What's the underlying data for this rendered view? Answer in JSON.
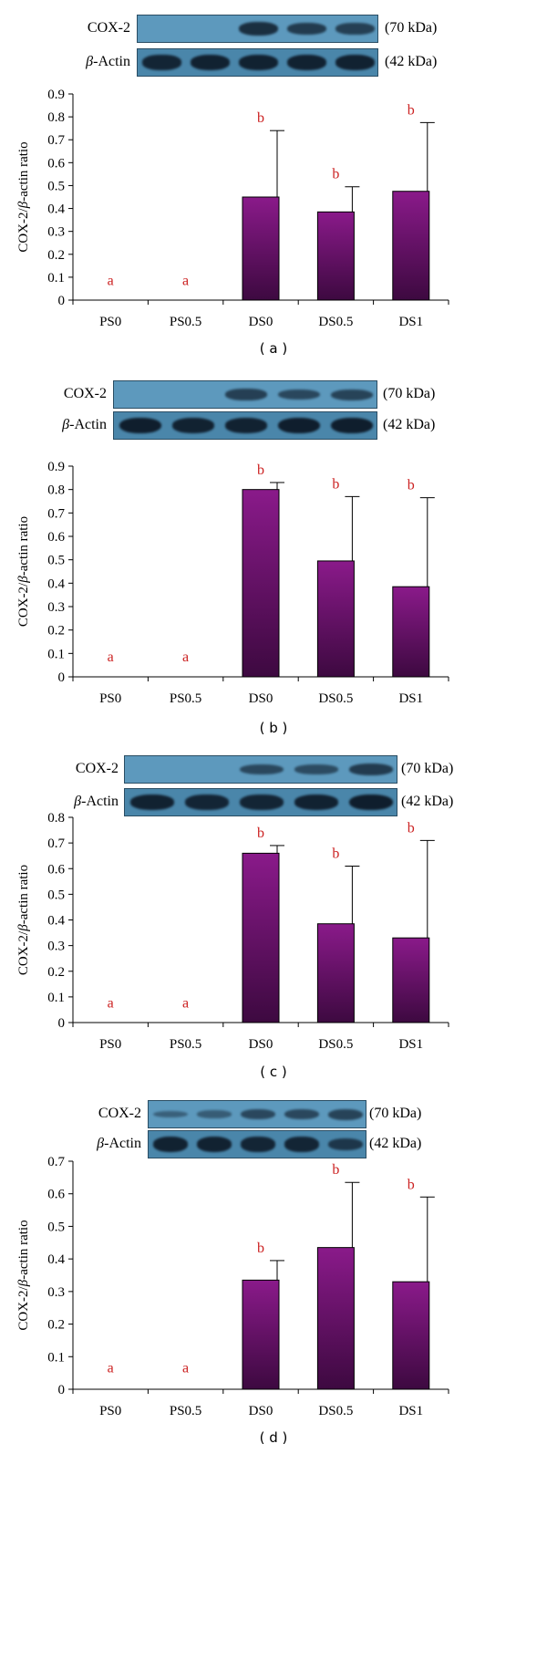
{
  "common": {
    "cox2_label": "COX-2",
    "actin_beta": "β",
    "actin_word": "-Actin",
    "kda_cox2": "(70 kDa)",
    "kda_actin": "(42 kDa)",
    "ylabel_part1": "COX-2/",
    "ylabel_beta": "β",
    "ylabel_part2": "-actin ratio"
  },
  "colors": {
    "bar_top": "#8a1a8a",
    "bar_bottom": "#3d0940",
    "letter": "#cc2222",
    "blot_bg": "#5d99bd",
    "blot_bg_dark": "#4a86aa",
    "band": "#0e1b29"
  },
  "chart_data": [
    {
      "panel": "( a )",
      "type": "bar",
      "categories": [
        "PS0",
        "PS0.5",
        "DS0",
        "DS0.5",
        "DS1"
      ],
      "values": [
        0,
        0,
        0.45,
        0.385,
        0.475
      ],
      "errors": [
        0,
        0,
        0.29,
        0.11,
        0.3
      ],
      "letters": [
        "a",
        "a",
        "b",
        "b",
        "b"
      ],
      "ylim": [
        0,
        0.9
      ],
      "yticks": [
        "0",
        "0.1",
        "0.2",
        "0.3",
        "0.4",
        "0.5",
        "0.6",
        "0.7",
        "0.8",
        "0.9"
      ],
      "ylabel": "COX-2/β-actin ratio",
      "grid": false,
      "bands": {
        "cox2": [
          0,
          0,
          0.75,
          0.6,
          0.55
        ],
        "actin": [
          0.85,
          0.9,
          0.9,
          0.9,
          0.9
        ]
      }
    },
    {
      "panel": "( b )",
      "type": "bar",
      "categories": [
        "PS0",
        "PS0.5",
        "DS0",
        "DS0.5",
        "DS1"
      ],
      "values": [
        0,
        0,
        0.8,
        0.495,
        0.385
      ],
      "errors": [
        0,
        0,
        0.03,
        0.275,
        0.38
      ],
      "letters": [
        "a",
        "a",
        "b",
        "b",
        "b"
      ],
      "ylim": [
        0,
        0.9
      ],
      "yticks": [
        "0",
        "0.1",
        "0.2",
        "0.3",
        "0.4",
        "0.5",
        "0.6",
        "0.7",
        "0.8",
        "0.9"
      ],
      "ylabel": "COX-2/β-actin ratio",
      "grid": false,
      "bands": {
        "cox2": [
          0,
          0,
          0.55,
          0.45,
          0.5
        ],
        "actin": [
          0.95,
          0.9,
          0.9,
          0.95,
          0.95
        ]
      }
    },
    {
      "panel": "( c )",
      "type": "bar",
      "categories": [
        "PS0",
        "PS0.5",
        "DS0",
        "DS0.5",
        "DS1"
      ],
      "values": [
        0,
        0,
        0.66,
        0.385,
        0.33
      ],
      "errors": [
        0,
        0,
        0.03,
        0.225,
        0.38
      ],
      "letters": [
        "a",
        "a",
        "b",
        "b",
        "b"
      ],
      "ylim": [
        0,
        0.8
      ],
      "yticks": [
        "0",
        "0.1",
        "0.2",
        "0.3",
        "0.4",
        "0.5",
        "0.6",
        "0.7",
        "0.8"
      ],
      "ylabel": "COX-2/β-actin ratio",
      "grid": false,
      "bands": {
        "cox2": [
          0,
          0,
          0.45,
          0.4,
          0.6
        ],
        "actin": [
          0.9,
          0.85,
          0.85,
          0.9,
          0.95
        ]
      }
    },
    {
      "panel": "( d )",
      "type": "bar",
      "categories": [
        "PS0",
        "PS0.5",
        "DS0",
        "DS0.5",
        "DS1"
      ],
      "values": [
        0,
        0,
        0.335,
        0.435,
        0.33
      ],
      "errors": [
        0,
        0,
        0.06,
        0.2,
        0.26
      ],
      "letters": [
        "a",
        "a",
        "b",
        "b",
        "b"
      ],
      "ylim": [
        0,
        0.7
      ],
      "yticks": [
        "0",
        "0.1",
        "0.2",
        "0.3",
        "0.4",
        "0.5",
        "0.6",
        "0.7"
      ],
      "ylabel": "COX-2/β-actin ratio",
      "grid": false,
      "bands": {
        "cox2": [
          0.15,
          0.2,
          0.45,
          0.45,
          0.5
        ],
        "actin": [
          0.9,
          0.9,
          0.85,
          0.85,
          0.6
        ]
      }
    }
  ]
}
